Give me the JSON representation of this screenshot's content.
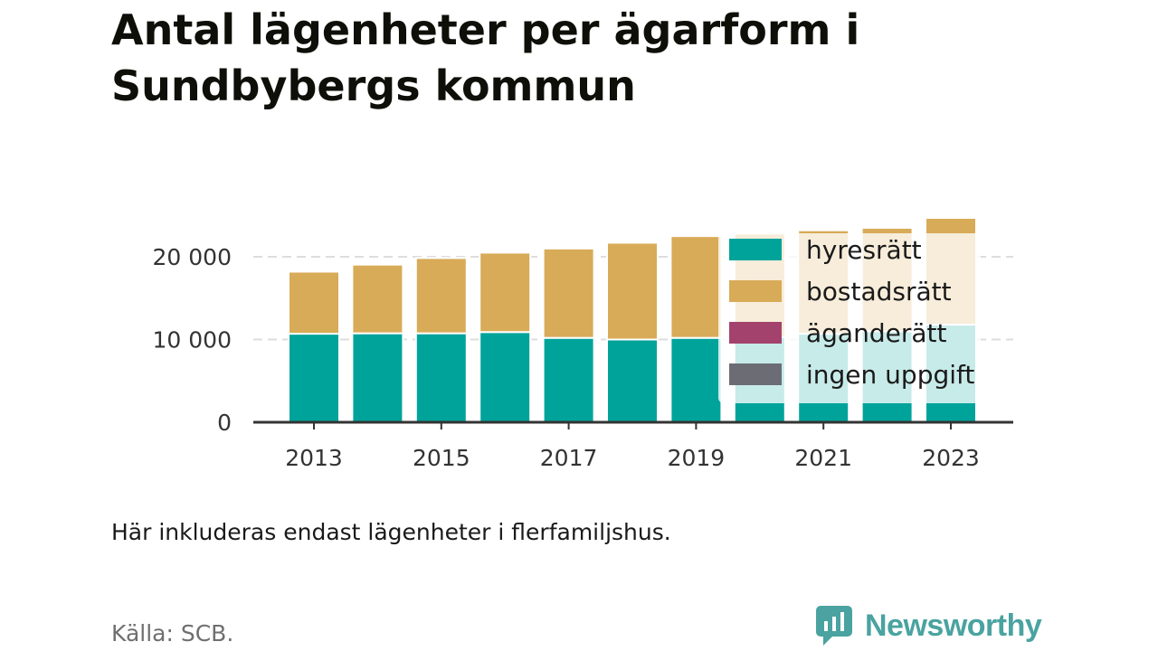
{
  "page": {
    "title_line1": "Antal lägenheter per ägarform i",
    "title_line2": "Sundbybergs kommun",
    "note": "Här inkluderas endast lägenheter i flerfamiljshus.",
    "source": "Källa: SCB.",
    "brand": "Newsworthy"
  },
  "colors": {
    "hyresratt": "#00a39a",
    "bostadsratt": "#d8ab58",
    "aganderatt": "#a3426c",
    "ingen_uppgift": "#6c6c74",
    "brand": "#4aa3a0"
  },
  "chart_data": {
    "type": "bar",
    "stacked": true,
    "categories": [
      "2013",
      "2014",
      "2015",
      "2016",
      "2017",
      "2018",
      "2019",
      "2020",
      "2021",
      "2022",
      "2023"
    ],
    "x_tick_labels": [
      "2013",
      "2015",
      "2017",
      "2019",
      "2021",
      "2023"
    ],
    "y_ticks": [
      0,
      10000,
      20000
    ],
    "y_tick_labels": [
      "0",
      "10 000",
      "20 000"
    ],
    "ylim": [
      0,
      27000
    ],
    "grid": true,
    "legend_position": "right, overlapping last bars",
    "series": [
      {
        "name": "hyresrätt",
        "color_key": "hyresratt",
        "values": [
          10700,
          10750,
          10750,
          10900,
          10200,
          10000,
          10200,
          10300,
          10700,
          11000,
          11800
        ]
      },
      {
        "name": "bostadsrätt",
        "color_key": "bostadsratt",
        "values": [
          7500,
          8300,
          9100,
          9600,
          10800,
          11700,
          12300,
          12500,
          12500,
          12500,
          12900
        ]
      },
      {
        "name": "äganderätt",
        "color_key": "aganderatt",
        "values": [
          0,
          0,
          0,
          0,
          0,
          0,
          0,
          0,
          0,
          0,
          0
        ]
      },
      {
        "name": "ingen uppgift",
        "color_key": "ingen_uppgift",
        "values": [
          0,
          0,
          0,
          0,
          0,
          0,
          0,
          0,
          0,
          0,
          0
        ]
      }
    ]
  }
}
